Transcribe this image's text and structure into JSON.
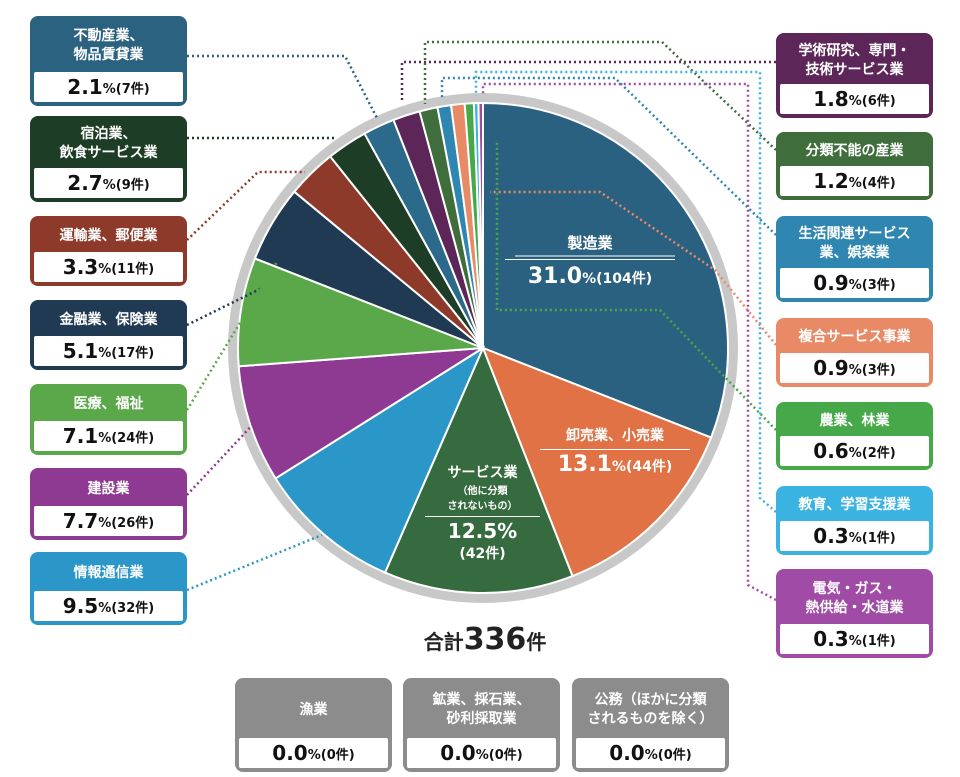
{
  "chart_data": {
    "type": "pie",
    "total_label": "合計",
    "total_value": "336",
    "total_unit": "件",
    "slices": [
      {
        "label": "製造業",
        "percent": 31.0,
        "count": 104,
        "color": "#2b6180"
      },
      {
        "label": "卸売業、小売業",
        "percent": 13.1,
        "count": 44,
        "color": "#e07246"
      },
      {
        "label": "サービス業（他に分類されないもの）",
        "percent": 12.5,
        "count": 42,
        "color": "#356b3f"
      },
      {
        "label": "情報通信業",
        "percent": 9.5,
        "count": 32,
        "color": "#2a97c8"
      },
      {
        "label": "建設業",
        "percent": 7.7,
        "count": 26,
        "color": "#8e3a93"
      },
      {
        "label": "医療、福祉",
        "percent": 7.1,
        "count": 24,
        "color": "#5aa84a"
      },
      {
        "label": "金融業、保険業",
        "percent": 5.1,
        "count": 17,
        "color": "#1f3a52"
      },
      {
        "label": "運輸業、郵便業",
        "percent": 3.3,
        "count": 11,
        "color": "#8e3a2a"
      },
      {
        "label": "宿泊業、飲食サービス業",
        "percent": 2.7,
        "count": 9,
        "color": "#1e3d26"
      },
      {
        "label": "不動産業、物品賃貸業",
        "percent": 2.1,
        "count": 7,
        "color": "#2b6a8a"
      },
      {
        "label": "学術研究、専門・技術サービス業",
        "percent": 1.8,
        "count": 6,
        "color": "#5c2658"
      },
      {
        "label": "分類不能の産業",
        "percent": 1.2,
        "count": 4,
        "color": "#3f6d3c"
      },
      {
        "label": "生活関連サービス業、娯楽業",
        "percent": 0.9,
        "count": 3,
        "color": "#2f86b0"
      },
      {
        "label": "複合サービス事業",
        "percent": 0.9,
        "count": 3,
        "color": "#e88a65"
      },
      {
        "label": "農業、林業",
        "percent": 0.6,
        "count": 2,
        "color": "#47a84a"
      },
      {
        "label": "教育、学習支援業",
        "percent": 0.3,
        "count": 1,
        "color": "#3bb3e0"
      },
      {
        "label": "電気・ガス・熱供給・水道業",
        "percent": 0.3,
        "count": 1,
        "color": "#a04ca6"
      }
    ],
    "zero_categories": [
      {
        "label": "漁業",
        "percent": 0.0,
        "count": 0
      },
      {
        "label": "鉱業、採石業、砂利採取業",
        "percent": 0.0,
        "count": 0
      },
      {
        "label": "公務（ほかに分類されるものを除く）",
        "percent": 0.0,
        "count": 0
      }
    ]
  },
  "inside": {
    "s0": {
      "name": "製造業",
      "pct": "31.0",
      "cnt": "%(104件)"
    },
    "s1": {
      "name": "卸売業、小売業",
      "pct": "13.1",
      "cnt": "%(44件)"
    },
    "s2": {
      "name": "サービス業",
      "sub1": "（他に分類",
      "sub2": "されないもの）",
      "pct": "12.5%",
      "cnt": "(42件)"
    }
  },
  "boxes": [
    {
      "l1": "不動産業、",
      "l2": "物品賃貸業",
      "pct": "2.1",
      "cnt": "%(7件)",
      "color": "#2b6280"
    },
    {
      "l1": "宿泊業、",
      "l2": "飲食サービス業",
      "pct": "2.7",
      "cnt": "%(9件)",
      "color": "#1e3d26"
    },
    {
      "l1": "運輸業、郵便業",
      "l2": "",
      "pct": "3.3",
      "cnt": "%(11件)",
      "color": "#8e3a2a"
    },
    {
      "l1": "金融業、保険業",
      "l2": "",
      "pct": "5.1",
      "cnt": "%(17件)",
      "color": "#1f3a52"
    },
    {
      "l1": "医療、福祉",
      "l2": "",
      "pct": "7.1",
      "cnt": "%(24件)",
      "color": "#5aa84a"
    },
    {
      "l1": "建設業",
      "l2": "",
      "pct": "7.7",
      "cnt": "%(26件)",
      "color": "#8e3a93"
    },
    {
      "l1": "情報通信業",
      "l2": "",
      "pct": "9.5",
      "cnt": "%(32件)",
      "color": "#2a97c8"
    },
    {
      "l1": "学術研究、専門・",
      "l2": "技術サービス業",
      "pct": "1.8",
      "cnt": "%(6件)",
      "color": "#5c2658"
    },
    {
      "l1": "分類不能の産業",
      "l2": "",
      "pct": "1.2",
      "cnt": "%(4件)",
      "color": "#3f6d3c"
    },
    {
      "l1": "生活関連サービス",
      "l2": "業、娯楽業",
      "pct": "0.9",
      "cnt": "%(3件)",
      "color": "#2f86b0"
    },
    {
      "l1": "複合サービス事業",
      "l2": "",
      "pct": "0.9",
      "cnt": "%(3件)",
      "color": "#e88a65"
    },
    {
      "l1": "農業、林業",
      "l2": "",
      "pct": "0.6",
      "cnt": "%(2件)",
      "color": "#47a84a"
    },
    {
      "l1": "教育、学習支援業",
      "l2": "",
      "pct": "0.3",
      "cnt": "%(1件)",
      "color": "#3bb3e0"
    },
    {
      "l1": "電気・ガス・",
      "l2": "熱供給・水道業",
      "pct": "0.3",
      "cnt": "%(1件)",
      "color": "#a04ca6"
    },
    {
      "l1": "漁業",
      "l2": "",
      "pct": "0.0",
      "cnt": "%(0件)",
      "color": "#8c8c8c"
    },
    {
      "l1": "鉱業、採石業、",
      "l2": "砂利採取業",
      "pct": "0.0",
      "cnt": "%(0件)",
      "color": "#8c8c8c"
    },
    {
      "l1": "公務（ほかに分類",
      "l2": "されるものを除く）",
      "pct": "0.0",
      "cnt": "%(0件)",
      "color": "#8c8c8c"
    }
  ]
}
